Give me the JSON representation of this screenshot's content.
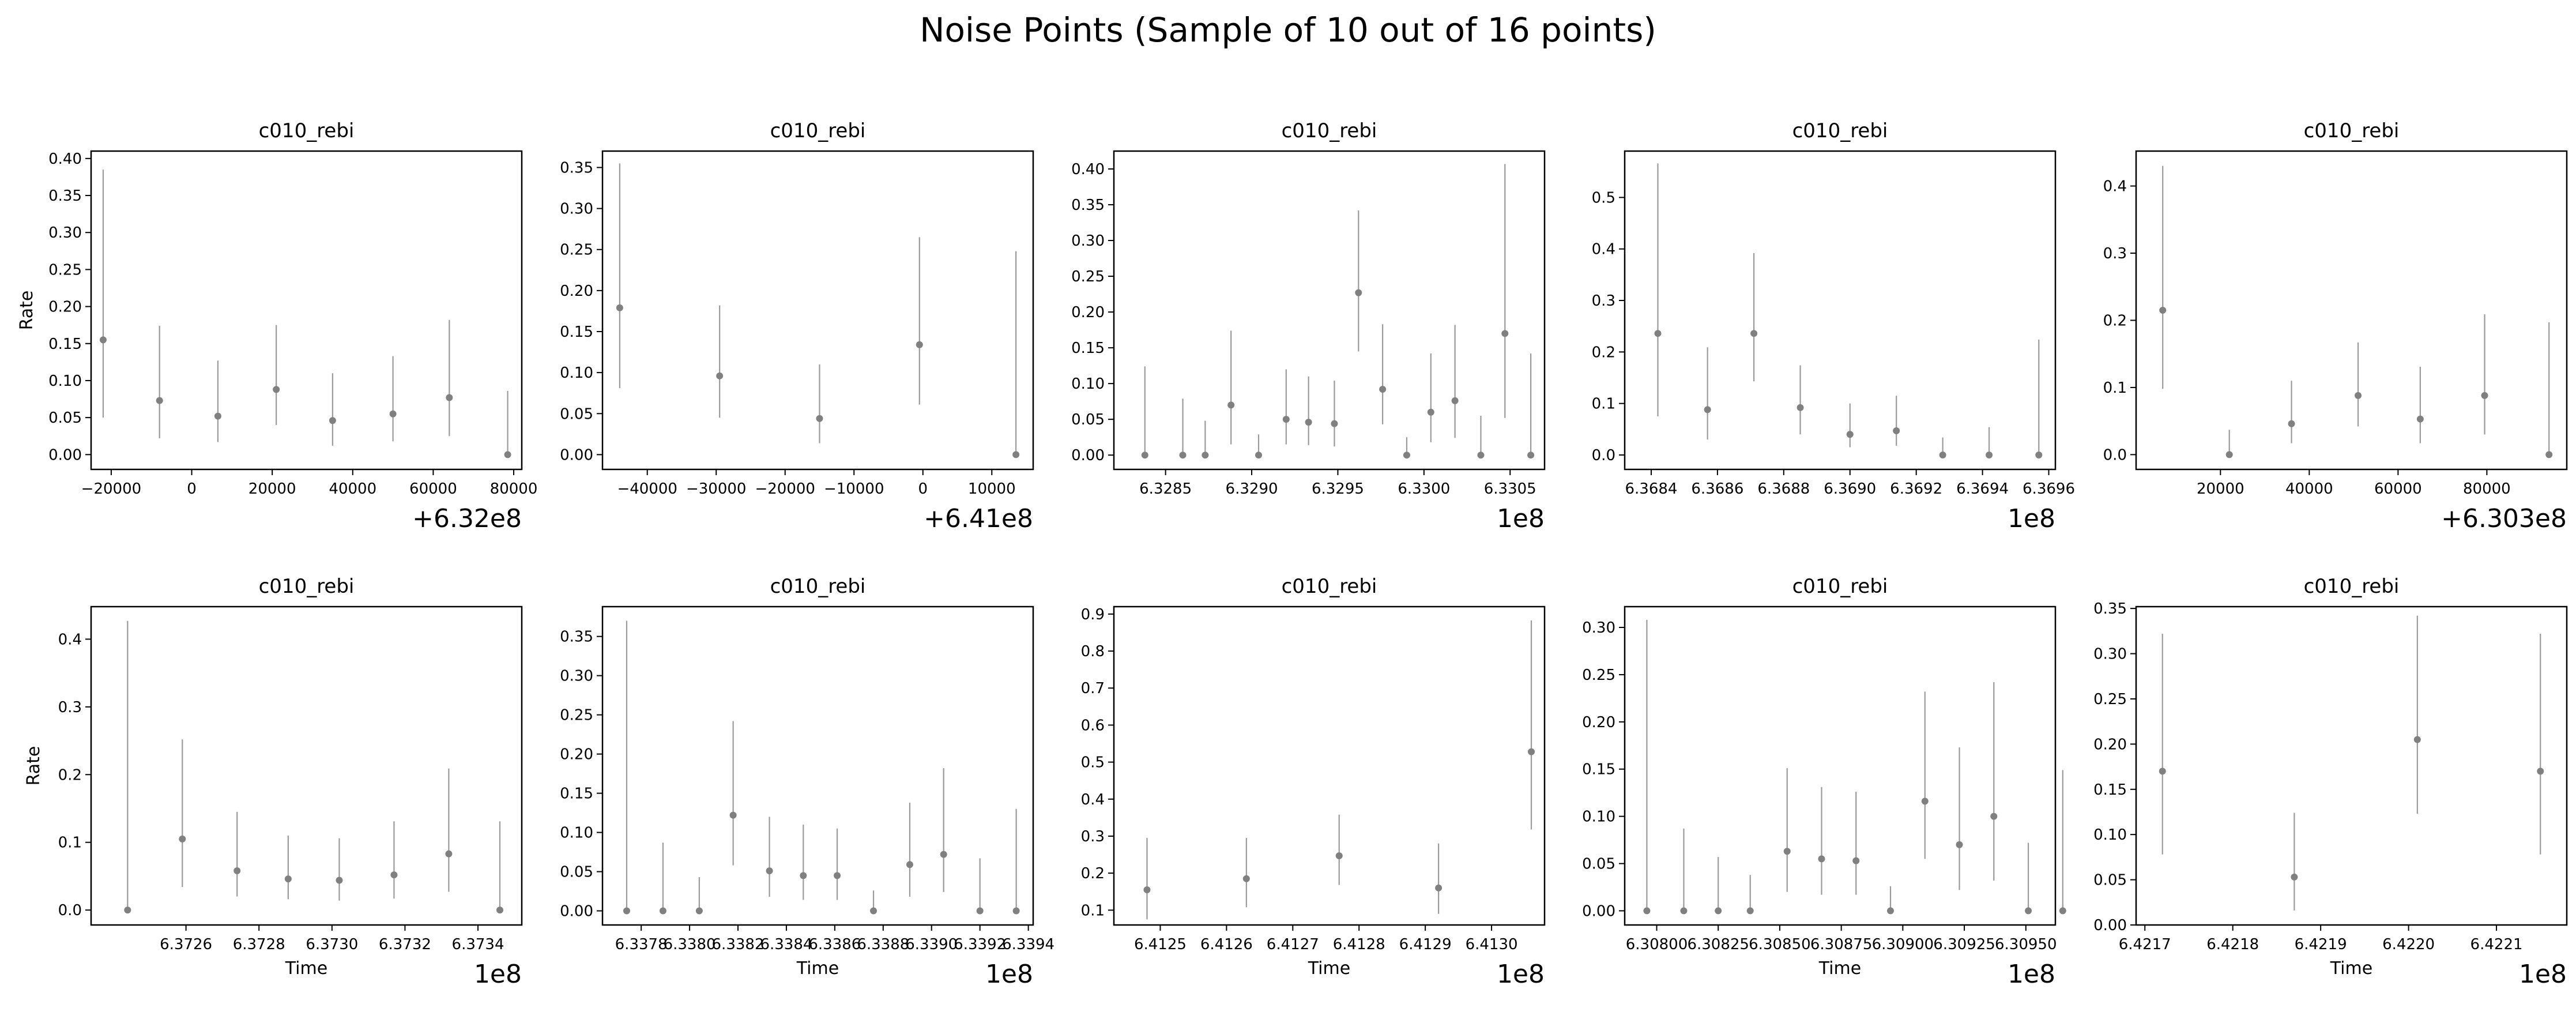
{
  "figure": {
    "suptitle": "Noise Points (Sample of 10 out of 16 points)"
  },
  "colors": {
    "marker": "#808080",
    "errorbar": "#9a9a9a",
    "axes": "#000000",
    "background": "#ffffff"
  },
  "chart_data": [
    {
      "type": "scatter",
      "title": "c010_rebi",
      "xlabel": "",
      "ylabel": "Rate",
      "error_bars": true,
      "grid": false,
      "legend": "none",
      "x_offset_label": "+6.32e8",
      "xlim": [
        -25000,
        82000
      ],
      "ylim": [
        -0.02,
        0.41
      ],
      "xticks": [
        -20000,
        0,
        20000,
        40000,
        60000,
        80000
      ],
      "xtick_labels": [
        "−20000",
        "0",
        "20000",
        "40000",
        "60000",
        "80000"
      ],
      "yticks": [
        0,
        0.05,
        0.1,
        0.15,
        0.2,
        0.25,
        0.3,
        0.35,
        0.4
      ],
      "ytick_labels": [
        "0.00",
        "0.05",
        "0.10",
        "0.15",
        "0.20",
        "0.25",
        "0.30",
        "0.35",
        "0.40"
      ],
      "points": [
        {
          "x": -22000,
          "y": 0.155,
          "lo": 0.05,
          "hi": 0.385
        },
        {
          "x": -8000,
          "y": 0.073,
          "lo": 0.022,
          "hi": 0.174
        },
        {
          "x": 6500,
          "y": 0.052,
          "lo": 0.017,
          "hi": 0.127
        },
        {
          "x": 21000,
          "y": 0.088,
          "lo": 0.04,
          "hi": 0.175
        },
        {
          "x": 35000,
          "y": 0.046,
          "lo": 0.012,
          "hi": 0.11
        },
        {
          "x": 50000,
          "y": 0.055,
          "lo": 0.018,
          "hi": 0.133
        },
        {
          "x": 64000,
          "y": 0.077,
          "lo": 0.025,
          "hi": 0.182
        },
        {
          "x": 78500,
          "y": 0.0,
          "lo": 0.0,
          "hi": 0.086
        }
      ]
    },
    {
      "type": "scatter",
      "title": "c010_rebi",
      "xlabel": "",
      "ylabel": "",
      "error_bars": true,
      "grid": false,
      "legend": "none",
      "x_offset_label": "+6.41e8",
      "xlim": [
        -46500,
        16000
      ],
      "ylim": [
        -0.018,
        0.37
      ],
      "xticks": [
        -40000,
        -30000,
        -20000,
        -10000,
        0,
        10000
      ],
      "xtick_labels": [
        "−40000",
        "−30000",
        "−20000",
        "−10000",
        "0",
        "10000"
      ],
      "yticks": [
        0,
        0.05,
        0.1,
        0.15,
        0.2,
        0.25,
        0.3,
        0.35
      ],
      "ytick_labels": [
        "0.00",
        "0.05",
        "0.10",
        "0.15",
        "0.20",
        "0.25",
        "0.30",
        "0.35"
      ],
      "points": [
        {
          "x": -44000,
          "y": 0.179,
          "lo": 0.081,
          "hi": 0.355
        },
        {
          "x": -29500,
          "y": 0.096,
          "lo": 0.045,
          "hi": 0.182
        },
        {
          "x": -15000,
          "y": 0.044,
          "lo": 0.014,
          "hi": 0.11
        },
        {
          "x": -500,
          "y": 0.134,
          "lo": 0.061,
          "hi": 0.265
        },
        {
          "x": 13500,
          "y": 0.0,
          "lo": 0.0,
          "hi": 0.248
        }
      ]
    },
    {
      "type": "scatter",
      "title": "c010_rebi",
      "xlabel": "",
      "ylabel": "",
      "error_bars": true,
      "grid": false,
      "legend": "none",
      "x_offset_label": "1e8",
      "xlim": [
        6.3282,
        6.3307
      ],
      "ylim": [
        -0.02,
        0.425
      ],
      "xticks": [
        6.3285,
        6.329,
        6.3295,
        6.33,
        6.3305
      ],
      "xtick_labels": [
        "6.3285",
        "6.3290",
        "6.3295",
        "6.3300",
        "6.3305"
      ],
      "yticks": [
        0,
        0.05,
        0.1,
        0.15,
        0.2,
        0.25,
        0.3,
        0.35,
        0.4
      ],
      "ytick_labels": [
        "0.00",
        "0.05",
        "0.10",
        "0.15",
        "0.20",
        "0.25",
        "0.30",
        "0.35",
        "0.40"
      ],
      "points": [
        {
          "x": 6.32838,
          "y": 0.0,
          "lo": 0.0,
          "hi": 0.124
        },
        {
          "x": 6.3286,
          "y": 0.0,
          "lo": 0.0,
          "hi": 0.079
        },
        {
          "x": 6.32873,
          "y": 0.0,
          "lo": 0.0,
          "hi": 0.048
        },
        {
          "x": 6.32888,
          "y": 0.07,
          "lo": 0.015,
          "hi": 0.174
        },
        {
          "x": 6.32904,
          "y": 0.0,
          "lo": 0.0,
          "hi": 0.029
        },
        {
          "x": 6.3292,
          "y": 0.05,
          "lo": 0.015,
          "hi": 0.12
        },
        {
          "x": 6.32933,
          "y": 0.046,
          "lo": 0.014,
          "hi": 0.11
        },
        {
          "x": 6.32948,
          "y": 0.044,
          "lo": 0.012,
          "hi": 0.104
        },
        {
          "x": 6.32962,
          "y": 0.227,
          "lo": 0.145,
          "hi": 0.342
        },
        {
          "x": 6.32976,
          "y": 0.092,
          "lo": 0.043,
          "hi": 0.183
        },
        {
          "x": 6.3299,
          "y": 0.0,
          "lo": 0.0,
          "hi": 0.025
        },
        {
          "x": 6.33004,
          "y": 0.06,
          "lo": 0.018,
          "hi": 0.142
        },
        {
          "x": 6.33018,
          "y": 0.076,
          "lo": 0.024,
          "hi": 0.182
        },
        {
          "x": 6.33033,
          "y": 0.0,
          "lo": 0.0,
          "hi": 0.055
        },
        {
          "x": 6.33047,
          "y": 0.17,
          "lo": 0.052,
          "hi": 0.407
        },
        {
          "x": 6.33062,
          "y": 0.0,
          "lo": 0.0,
          "hi": 0.142
        }
      ]
    },
    {
      "type": "scatter",
      "title": "c010_rebi",
      "xlabel": "",
      "ylabel": "",
      "error_bars": true,
      "grid": false,
      "legend": "none",
      "x_offset_label": "1e8",
      "xlim": [
        6.36832,
        6.36962
      ],
      "ylim": [
        -0.028,
        0.59
      ],
      "xticks": [
        6.3684,
        6.3686,
        6.3688,
        6.369,
        6.3692,
        6.3694,
        6.3696
      ],
      "xtick_labels": [
        "6.3684",
        "6.3686",
        "6.3688",
        "6.3690",
        "6.3692",
        "6.3694",
        "6.3696"
      ],
      "yticks": [
        0,
        0.1,
        0.2,
        0.3,
        0.4,
        0.5
      ],
      "ytick_labels": [
        "0.0",
        "0.1",
        "0.2",
        "0.3",
        "0.4",
        "0.5"
      ],
      "points": [
        {
          "x": 6.36842,
          "y": 0.236,
          "lo": 0.075,
          "hi": 0.566
        },
        {
          "x": 6.36857,
          "y": 0.088,
          "lo": 0.03,
          "hi": 0.209
        },
        {
          "x": 6.36871,
          "y": 0.236,
          "lo": 0.143,
          "hi": 0.392
        },
        {
          "x": 6.36885,
          "y": 0.092,
          "lo": 0.04,
          "hi": 0.174
        },
        {
          "x": 6.369,
          "y": 0.04,
          "lo": 0.015,
          "hi": 0.1
        },
        {
          "x": 6.36914,
          "y": 0.047,
          "lo": 0.018,
          "hi": 0.115
        },
        {
          "x": 6.36928,
          "y": 0.0,
          "lo": 0.0,
          "hi": 0.034
        },
        {
          "x": 6.36942,
          "y": 0.0,
          "lo": 0.0,
          "hi": 0.054
        },
        {
          "x": 6.36957,
          "y": 0.0,
          "lo": 0.0,
          "hi": 0.224
        }
      ]
    },
    {
      "type": "scatter",
      "title": "c010_rebi",
      "xlabel": "",
      "ylabel": "",
      "error_bars": true,
      "grid": false,
      "legend": "none",
      "x_offset_label": "+6.303e8",
      "xlim": [
        1000,
        98000
      ],
      "ylim": [
        -0.022,
        0.452
      ],
      "xticks": [
        20000,
        40000,
        60000,
        80000
      ],
      "xtick_labels": [
        "20000",
        "40000",
        "60000",
        "80000"
      ],
      "yticks": [
        0,
        0.1,
        0.2,
        0.3,
        0.4
      ],
      "ytick_labels": [
        "0.0",
        "0.1",
        "0.2",
        "0.3",
        "0.4"
      ],
      "points": [
        {
          "x": 7000,
          "y": 0.215,
          "lo": 0.098,
          "hi": 0.43
        },
        {
          "x": 22000,
          "y": 0.0,
          "lo": 0.0,
          "hi": 0.037
        },
        {
          "x": 36000,
          "y": 0.046,
          "lo": 0.017,
          "hi": 0.11
        },
        {
          "x": 51000,
          "y": 0.088,
          "lo": 0.042,
          "hi": 0.167
        },
        {
          "x": 65000,
          "y": 0.053,
          "lo": 0.017,
          "hi": 0.131
        },
        {
          "x": 79500,
          "y": 0.088,
          "lo": 0.03,
          "hi": 0.209
        },
        {
          "x": 94000,
          "y": 0.0,
          "lo": 0.0,
          "hi": 0.197
        }
      ]
    },
    {
      "type": "scatter",
      "title": "c010_rebi",
      "xlabel": "Time",
      "ylabel": "Rate",
      "error_bars": true,
      "grid": false,
      "legend": "none",
      "x_offset_label": "1e8",
      "xlim": [
        6.37234,
        6.37352
      ],
      "ylim": [
        -0.022,
        0.448
      ],
      "xticks": [
        6.3726,
        6.3728,
        6.373,
        6.3732,
        6.3734
      ],
      "xtick_labels": [
        "6.3726",
        "6.3728",
        "6.3730",
        "6.3732",
        "6.3734"
      ],
      "yticks": [
        0,
        0.1,
        0.2,
        0.3,
        0.4
      ],
      "ytick_labels": [
        "0.0",
        "0.1",
        "0.2",
        "0.3",
        "0.4"
      ],
      "points": [
        {
          "x": 6.37244,
          "y": 0.0,
          "lo": 0.0,
          "hi": 0.427
        },
        {
          "x": 6.37259,
          "y": 0.105,
          "lo": 0.034,
          "hi": 0.252
        },
        {
          "x": 6.37274,
          "y": 0.058,
          "lo": 0.02,
          "hi": 0.145
        },
        {
          "x": 6.37288,
          "y": 0.046,
          "lo": 0.016,
          "hi": 0.11
        },
        {
          "x": 6.37302,
          "y": 0.044,
          "lo": 0.014,
          "hi": 0.106
        },
        {
          "x": 6.37317,
          "y": 0.052,
          "lo": 0.017,
          "hi": 0.131
        },
        {
          "x": 6.37332,
          "y": 0.083,
          "lo": 0.027,
          "hi": 0.209
        },
        {
          "x": 6.37346,
          "y": 0.0,
          "lo": 0.0,
          "hi": 0.131
        }
      ]
    },
    {
      "type": "scatter",
      "title": "c010_rebi",
      "xlabel": "Time",
      "ylabel": "",
      "error_bars": true,
      "grid": false,
      "legend": "none",
      "x_offset_label": "1e8",
      "xlim": [
        6.33764,
        6.33942
      ],
      "ylim": [
        -0.018,
        0.388
      ],
      "xticks": [
        6.3378,
        6.338,
        6.3382,
        6.3384,
        6.3386,
        6.3388,
        6.339,
        6.3392,
        6.3394
      ],
      "xtick_labels": [
        "6.3378",
        "6.3380",
        "6.3382",
        "6.3384",
        "6.3386",
        "6.3388",
        "6.3390",
        "6.3392",
        "6.3394"
      ],
      "yticks": [
        0,
        0.05,
        0.1,
        0.15,
        0.2,
        0.25,
        0.3,
        0.35
      ],
      "ytick_labels": [
        "0.00",
        "0.05",
        "0.10",
        "0.15",
        "0.20",
        "0.25",
        "0.30",
        "0.35"
      ],
      "points": [
        {
          "x": 6.33774,
          "y": 0.0,
          "lo": 0.0,
          "hi": 0.37
        },
        {
          "x": 6.33789,
          "y": 0.0,
          "lo": 0.0,
          "hi": 0.087
        },
        {
          "x": 6.33804,
          "y": 0.0,
          "lo": 0.0,
          "hi": 0.043
        },
        {
          "x": 6.33818,
          "y": 0.122,
          "lo": 0.058,
          "hi": 0.242
        },
        {
          "x": 6.33833,
          "y": 0.051,
          "lo": 0.018,
          "hi": 0.12
        },
        {
          "x": 6.33847,
          "y": 0.045,
          "lo": 0.014,
          "hi": 0.11
        },
        {
          "x": 6.33861,
          "y": 0.045,
          "lo": 0.014,
          "hi": 0.105
        },
        {
          "x": 6.33876,
          "y": 0.0,
          "lo": 0.0,
          "hi": 0.026
        },
        {
          "x": 6.33891,
          "y": 0.059,
          "lo": 0.018,
          "hi": 0.138
        },
        {
          "x": 6.33905,
          "y": 0.072,
          "lo": 0.024,
          "hi": 0.182
        },
        {
          "x": 6.3392,
          "y": 0.0,
          "lo": 0.0,
          "hi": 0.067
        },
        {
          "x": 6.33935,
          "y": 0.0,
          "lo": 0.0,
          "hi": 0.13
        }
      ]
    },
    {
      "type": "scatter",
      "title": "c010_rebi",
      "xlabel": "Time",
      "ylabel": "",
      "error_bars": true,
      "grid": false,
      "legend": "none",
      "x_offset_label": "1e8",
      "xlim": [
        6.41243,
        6.41308
      ],
      "ylim": [
        0.06,
        0.92
      ],
      "xticks": [
        6.4125,
        6.4126,
        6.4127,
        6.4128,
        6.4129,
        6.413
      ],
      "xtick_labels": [
        "6.4125",
        "6.4126",
        "6.4127",
        "6.4128",
        "6.4129",
        "6.4130"
      ],
      "yticks": [
        0.1,
        0.2,
        0.3,
        0.4,
        0.5,
        0.6,
        0.7,
        0.8,
        0.9
      ],
      "ytick_labels": [
        "0.1",
        "0.2",
        "0.3",
        "0.4",
        "0.5",
        "0.6",
        "0.7",
        "0.8",
        "0.9"
      ],
      "points": [
        {
          "x": 6.41248,
          "y": 0.155,
          "lo": 0.075,
          "hi": 0.295
        },
        {
          "x": 6.41263,
          "y": 0.185,
          "lo": 0.108,
          "hi": 0.295
        },
        {
          "x": 6.41277,
          "y": 0.247,
          "lo": 0.168,
          "hi": 0.358
        },
        {
          "x": 6.41292,
          "y": 0.16,
          "lo": 0.09,
          "hi": 0.28
        },
        {
          "x": 6.41306,
          "y": 0.528,
          "lo": 0.318,
          "hi": 0.883
        }
      ]
    },
    {
      "type": "scatter",
      "title": "c010_rebi",
      "xlabel": "Time",
      "ylabel": "",
      "error_bars": true,
      "grid": false,
      "legend": "none",
      "x_offset_label": "1e8",
      "xlim": [
        6.30787,
        6.30962
      ],
      "ylim": [
        -0.015,
        0.322
      ],
      "xticks": [
        6.308,
        6.30825,
        6.3085,
        6.30875,
        6.309,
        6.30925,
        6.3095
      ],
      "xtick_labels": [
        "6.30800",
        "6.30825",
        "6.30850",
        "6.30875",
        "6.30900",
        "6.30925",
        "6.30950"
      ],
      "yticks": [
        0,
        0.05,
        0.1,
        0.15,
        0.2,
        0.25,
        0.3
      ],
      "ytick_labels": [
        "0.00",
        "0.05",
        "0.10",
        "0.15",
        "0.20",
        "0.25",
        "0.30"
      ],
      "points": [
        {
          "x": 6.30796,
          "y": 0.0,
          "lo": 0.0,
          "hi": 0.308
        },
        {
          "x": 6.30811,
          "y": 0.0,
          "lo": 0.0,
          "hi": 0.087
        },
        {
          "x": 6.30825,
          "y": 0.0,
          "lo": 0.0,
          "hi": 0.057
        },
        {
          "x": 6.30838,
          "y": 0.0,
          "lo": 0.0,
          "hi": 0.038
        },
        {
          "x": 6.30853,
          "y": 0.063,
          "lo": 0.02,
          "hi": 0.151
        },
        {
          "x": 6.30867,
          "y": 0.055,
          "lo": 0.017,
          "hi": 0.131
        },
        {
          "x": 6.30881,
          "y": 0.053,
          "lo": 0.017,
          "hi": 0.126
        },
        {
          "x": 6.30895,
          "y": 0.0,
          "lo": 0.0,
          "hi": 0.026
        },
        {
          "x": 6.30909,
          "y": 0.116,
          "lo": 0.055,
          "hi": 0.232
        },
        {
          "x": 6.30923,
          "y": 0.07,
          "lo": 0.022,
          "hi": 0.173
        },
        {
          "x": 6.30937,
          "y": 0.1,
          "lo": 0.032,
          "hi": 0.242
        },
        {
          "x": 6.30951,
          "y": 0.0,
          "lo": 0.0,
          "hi": 0.072
        },
        {
          "x": 6.30965,
          "y": 0.0,
          "lo": 0.0,
          "hi": 0.149
        }
      ]
    },
    {
      "type": "scatter",
      "title": "c010_rebi",
      "xlabel": "Time",
      "ylabel": "",
      "error_bars": true,
      "grid": false,
      "legend": "none",
      "x_offset_label": "1e8",
      "xlim": [
        6.42169,
        6.42218
      ],
      "ylim": [
        0.0,
        0.352
      ],
      "xticks": [
        6.4217,
        6.4218,
        6.4219,
        6.422,
        6.4221
      ],
      "xtick_labels": [
        "6.4217",
        "6.4218",
        "6.4219",
        "6.4220",
        "6.4221"
      ],
      "yticks": [
        0,
        0.05,
        0.1,
        0.15,
        0.2,
        0.25,
        0.3,
        0.35
      ],
      "ytick_labels": [
        "0.00",
        "0.05",
        "0.10",
        "0.15",
        "0.20",
        "0.25",
        "0.30",
        "0.35"
      ],
      "points": [
        {
          "x": 6.42172,
          "y": 0.17,
          "lo": 0.078,
          "hi": 0.322
        },
        {
          "x": 6.42187,
          "y": 0.053,
          "lo": 0.016,
          "hi": 0.124
        },
        {
          "x": 6.42201,
          "y": 0.205,
          "lo": 0.123,
          "hi": 0.342
        },
        {
          "x": 6.42215,
          "y": 0.17,
          "lo": 0.078,
          "hi": 0.322
        }
      ]
    }
  ]
}
